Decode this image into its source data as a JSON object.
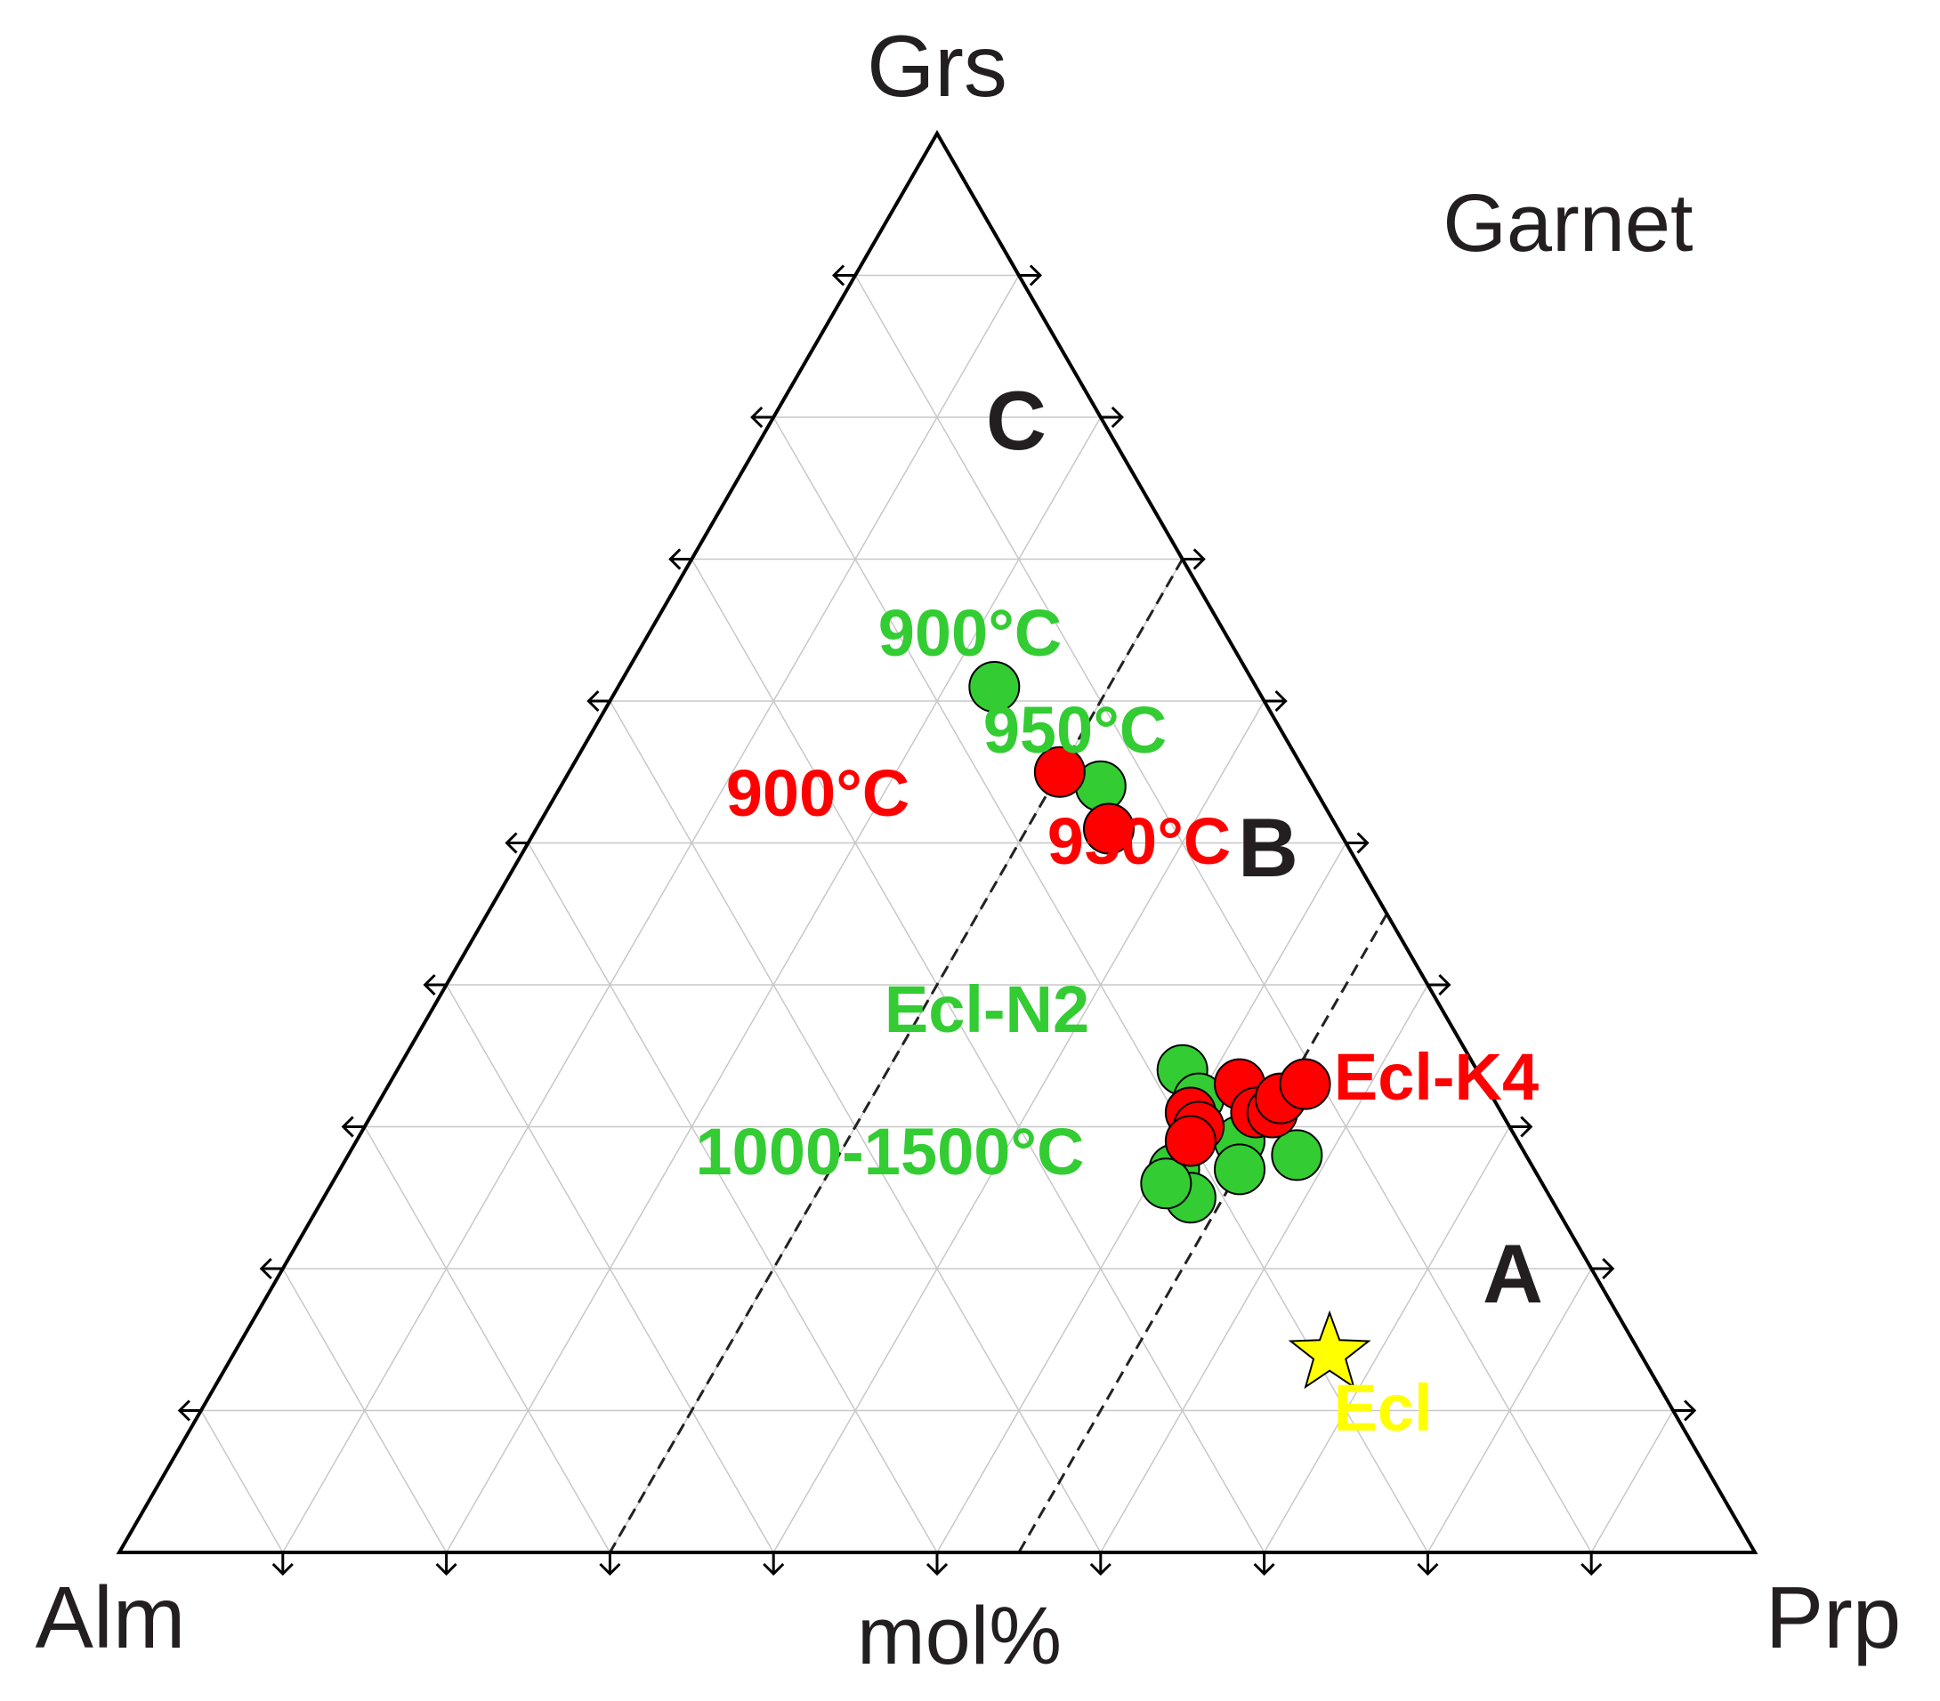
{
  "chart_data": {
    "type": "ternary-scatter",
    "title": "Garnet",
    "unit_label": "mol%",
    "apices": {
      "top": "Grs",
      "left": "Alm",
      "right": "Prp"
    },
    "grid": true,
    "tick_step": 10,
    "field_labels": [
      {
        "text": "C"
      },
      {
        "text": "B"
      },
      {
        "text": "A"
      }
    ],
    "field_boundaries": [
      {
        "from": {
          "grs": 70,
          "prp": 30,
          "alm": 0
        },
        "to": {
          "grs": 0,
          "prp": 30,
          "alm": 70
        }
      },
      {
        "from": {
          "grs": 45,
          "prp": 55,
          "alm": 0
        },
        "to": {
          "grs": 0,
          "prp": 55,
          "alm": 45
        }
      }
    ],
    "colors": {
      "green": "#33cc33",
      "red": "#ff0000",
      "yellow": "#ffff00",
      "axis": "#000000",
      "grid": "#c8c8c8",
      "text": "#231f20"
    },
    "series": [
      {
        "color": "#33cc33",
        "marker": "circle",
        "points": [
          {
            "grs": 61,
            "prp": 23,
            "alm": 16
          },
          {
            "grs": 54,
            "prp": 33,
            "alm": 13
          },
          {
            "grs": 34,
            "prp": 48,
            "alm": 18
          },
          {
            "grs": 32,
            "prp": 50,
            "alm": 18
          },
          {
            "grs": 29,
            "prp": 54,
            "alm": 17
          },
          {
            "grs": 27,
            "prp": 55,
            "alm": 18
          },
          {
            "grs": 28,
            "prp": 58,
            "alm": 14
          },
          {
            "grs": 27,
            "prp": 51,
            "alm": 22
          },
          {
            "grs": 25,
            "prp": 53,
            "alm": 22
          },
          {
            "grs": 26,
            "prp": 51,
            "alm": 23
          }
        ]
      },
      {
        "color": "#ff0000",
        "marker": "circle",
        "points": [
          {
            "grs": 55,
            "prp": 30,
            "alm": 15
          },
          {
            "grs": 51,
            "prp": 35,
            "alm": 14
          },
          {
            "grs": 33,
            "prp": 52,
            "alm": 15
          },
          {
            "grs": 31,
            "prp": 50,
            "alm": 19
          },
          {
            "grs": 30,
            "prp": 51,
            "alm": 19
          },
          {
            "grs": 29,
            "prp": 51,
            "alm": 20
          },
          {
            "grs": 31,
            "prp": 54,
            "alm": 15
          },
          {
            "grs": 31,
            "prp": 55,
            "alm": 14
          },
          {
            "grs": 32,
            "prp": 55,
            "alm": 13
          },
          {
            "grs": 33,
            "prp": 56,
            "alm": 11
          }
        ]
      },
      {
        "color": "#ffff00",
        "marker": "star",
        "points": [
          {
            "grs": 14,
            "prp": 67,
            "alm": 19
          }
        ]
      }
    ],
    "annotations": [
      {
        "text": "900°C",
        "color": "#33cc33"
      },
      {
        "text": "950°C",
        "color": "#33cc33"
      },
      {
        "text": "900°C",
        "color": "#ff0000"
      },
      {
        "text": "950°C",
        "color": "#ff0000"
      },
      {
        "text": "Ecl-N2",
        "color": "#33cc33"
      },
      {
        "text": "1000-1500°C",
        "color": "#33cc33"
      },
      {
        "text": "Ecl-K4",
        "color": "#ff0000"
      },
      {
        "text": "Ecl",
        "color": "#ffff00"
      }
    ]
  }
}
